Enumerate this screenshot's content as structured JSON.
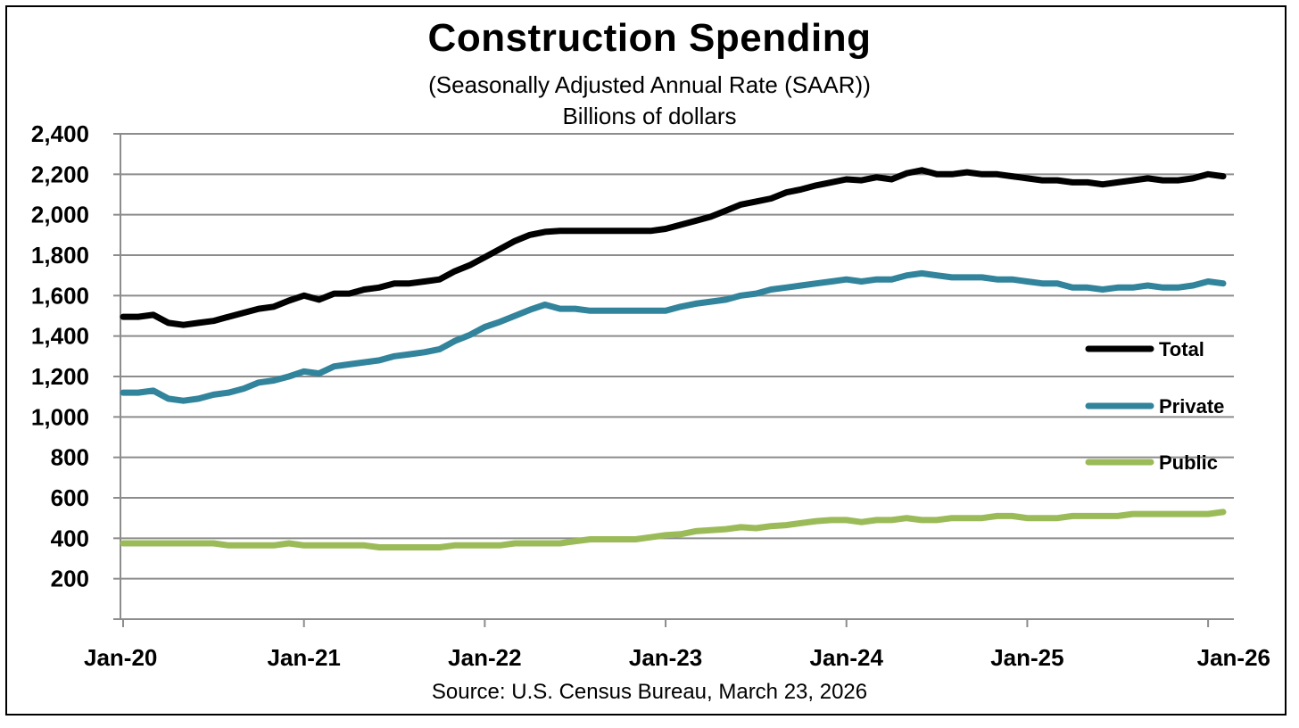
{
  "chart_data": {
    "type": "line",
    "title": "Construction  Spending",
    "subtitle_lines": [
      "(Seasonally Adjusted Annual Rate (SAAR))",
      "Billions of dollars"
    ],
    "source": "Source: U.S. Census Bureau, March 23, 2026",
    "xlabel": "",
    "ylabel": "",
    "ylim": [
      0,
      2400
    ],
    "y_ticks": [
      200,
      400,
      600,
      800,
      1000,
      1200,
      1400,
      1600,
      1800,
      2000,
      2200,
      2400
    ],
    "y_tick_labels": [
      "200",
      "400",
      "600",
      "800",
      "1,000",
      "1,200",
      "1,400",
      "1,600",
      "1,800",
      "2,000",
      "2,200",
      "2,400"
    ],
    "x_tick_labels": [
      "Jan-20",
      "Jan-21",
      "Jan-22",
      "Jan-23",
      "Jan-24",
      "Jan-25",
      "Jan-26"
    ],
    "x_tick_months": [
      0,
      12,
      24,
      36,
      48,
      60,
      72
    ],
    "grid": true,
    "legend_position": "right",
    "series": [
      {
        "name": "Total",
        "color": "#000000",
        "values": [
          1495,
          1495,
          1505,
          1465,
          1455,
          1465,
          1475,
          1495,
          1515,
          1535,
          1545,
          1575,
          1600,
          1580,
          1610,
          1610,
          1630,
          1640,
          1660,
          1660,
          1670,
          1680,
          1720,
          1750,
          1790,
          1830,
          1870,
          1900,
          1915,
          1920,
          1920,
          1920,
          1920,
          1920,
          1920,
          1920,
          1930,
          1950,
          1970,
          1990,
          2020,
          2050,
          2065,
          2080,
          2110,
          2125,
          2145,
          2160,
          2175,
          2170,
          2185,
          2175,
          2205,
          2220,
          2200,
          2200,
          2210,
          2200,
          2200,
          2190,
          2180,
          2170,
          2170,
          2160,
          2160,
          2150,
          2160,
          2170,
          2180,
          2170,
          2170,
          2180,
          2200,
          2190
        ]
      },
      {
        "name": "Private",
        "color": "#31849b",
        "values": [
          1120,
          1120,
          1130,
          1090,
          1080,
          1090,
          1110,
          1120,
          1140,
          1170,
          1180,
          1200,
          1225,
          1215,
          1250,
          1260,
          1270,
          1280,
          1300,
          1310,
          1320,
          1335,
          1375,
          1405,
          1445,
          1470,
          1500,
          1530,
          1555,
          1535,
          1535,
          1525,
          1525,
          1525,
          1525,
          1525,
          1525,
          1545,
          1560,
          1570,
          1580,
          1600,
          1610,
          1630,
          1640,
          1650,
          1660,
          1670,
          1680,
          1670,
          1680,
          1680,
          1700,
          1710,
          1700,
          1690,
          1690,
          1690,
          1680,
          1680,
          1670,
          1660,
          1660,
          1640,
          1640,
          1630,
          1640,
          1640,
          1650,
          1640,
          1640,
          1650,
          1670,
          1660
        ]
      },
      {
        "name": "Public",
        "color": "#9bbb59",
        "values": [
          375,
          375,
          375,
          375,
          375,
          375,
          375,
          365,
          365,
          365,
          365,
          375,
          365,
          365,
          365,
          365,
          365,
          355,
          355,
          355,
          355,
          355,
          365,
          365,
          365,
          365,
          375,
          375,
          375,
          375,
          385,
          395,
          395,
          395,
          395,
          405,
          415,
          420,
          435,
          440,
          445,
          455,
          450,
          460,
          465,
          475,
          485,
          490,
          490,
          480,
          490,
          490,
          500,
          490,
          490,
          500,
          500,
          500,
          510,
          510,
          500,
          500,
          500,
          510,
          510,
          510,
          510,
          520,
          520,
          520,
          520,
          520,
          520,
          530
        ]
      }
    ]
  }
}
